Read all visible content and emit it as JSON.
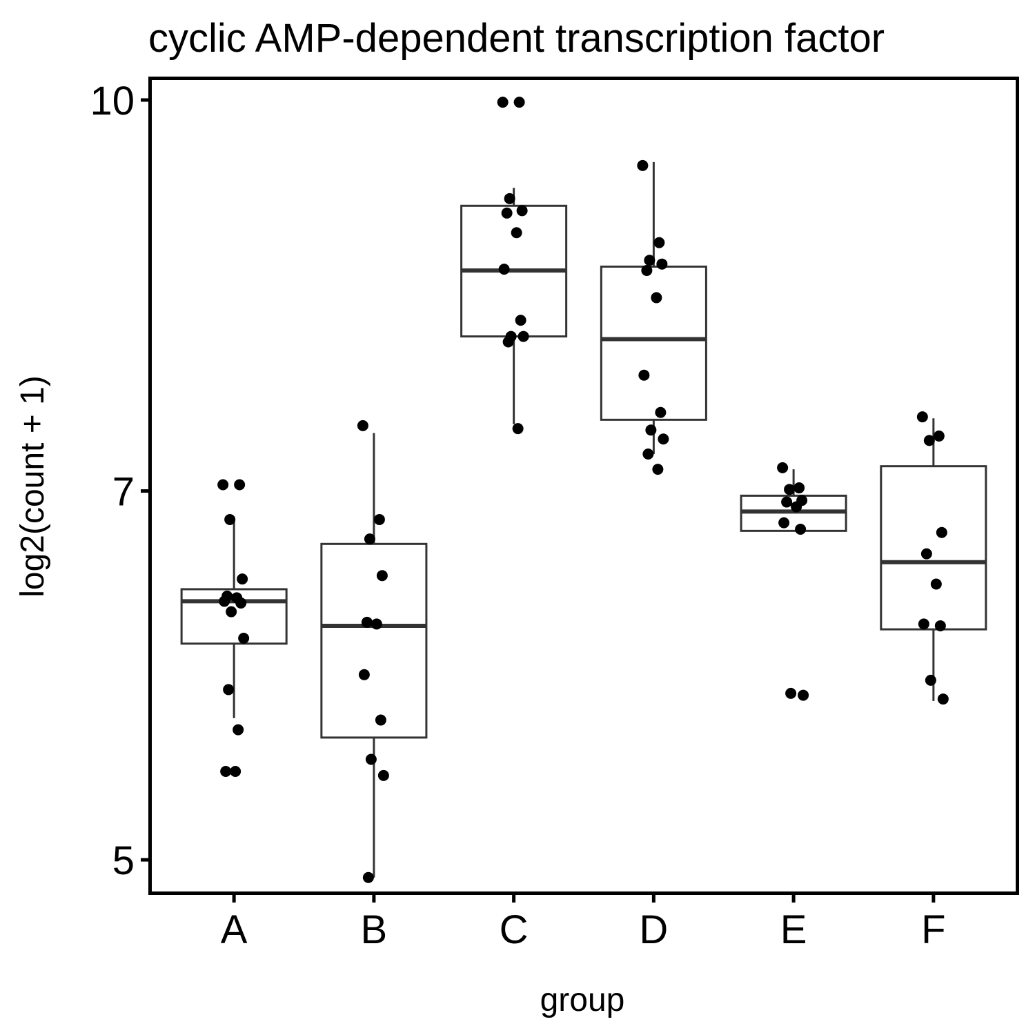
{
  "chart_data": {
    "type": "box",
    "title": "cyclic AMP-dependent transcription factor",
    "xlabel": "group",
    "ylabel": "log2(count + 1)",
    "y_scale": "log",
    "ylim": [
      4.85,
      10.2
    ],
    "y_ticks": [
      {
        "value": 5,
        "label": "5"
      },
      {
        "value": 7,
        "label": "7"
      },
      {
        "value": 10,
        "label": "10"
      }
    ],
    "categories": [
      "A",
      "B",
      "C",
      "D",
      "E",
      "F"
    ],
    "boxes": [
      {
        "group": "A",
        "q1": 6.09,
        "median": 6.33,
        "q3": 6.4,
        "whisker_low": 5.69,
        "whisker_high": 6.83
      },
      {
        "group": "B",
        "q1": 5.59,
        "median": 6.19,
        "q3": 6.67,
        "whisker_low": 4.92,
        "whisker_high": 7.38
      },
      {
        "group": "C",
        "q1": 8.06,
        "median": 8.56,
        "q3": 9.08,
        "whisker_low": 7.44,
        "whisker_high": 9.23
      },
      {
        "group": "D",
        "q1": 7.47,
        "median": 8.04,
        "q3": 8.59,
        "whisker_low": 7.24,
        "whisker_high": 9.45
      },
      {
        "group": "E",
        "q1": 6.75,
        "median": 6.87,
        "q3": 6.97,
        "whisker_low": 6.75,
        "whisker_high": 7.14
      },
      {
        "group": "F",
        "q1": 6.17,
        "median": 6.56,
        "q3": 7.16,
        "whisker_low": 5.78,
        "whisker_high": 7.48
      }
    ],
    "points": [
      {
        "group": "A",
        "values": [
          7.04,
          7.04,
          6.82,
          6.46,
          6.36,
          6.35,
          6.33,
          6.32,
          6.27,
          6.12,
          5.84,
          5.63,
          5.42,
          5.42
        ]
      },
      {
        "group": "B",
        "values": [
          7.43,
          6.82,
          6.7,
          6.48,
          6.21,
          6.2,
          5.92,
          5.68,
          5.48,
          5.4,
          4.92
        ]
      },
      {
        "group": "C",
        "values": [
          9.98,
          9.98,
          9.14,
          9.04,
          9.02,
          8.86,
          8.57,
          8.18,
          8.06,
          8.06,
          8.02,
          7.41
        ]
      },
      {
        "group": "D",
        "values": [
          9.42,
          8.78,
          8.64,
          8.61,
          8.56,
          8.35,
          7.78,
          7.52,
          7.4,
          7.34,
          7.24,
          7.14
        ]
      },
      {
        "group": "E",
        "values": [
          7.15,
          7.02,
          7.01,
          6.94,
          6.93,
          6.9,
          6.8,
          6.76,
          5.82,
          5.81
        ]
      },
      {
        "group": "F",
        "values": [
          7.49,
          7.36,
          7.33,
          6.74,
          6.61,
          6.43,
          6.2,
          6.19,
          5.89,
          5.79
        ]
      }
    ],
    "grid": false,
    "legend": "none",
    "colors": {
      "box_stroke": "#333333",
      "points": "#000000",
      "frame": "#000000"
    }
  }
}
